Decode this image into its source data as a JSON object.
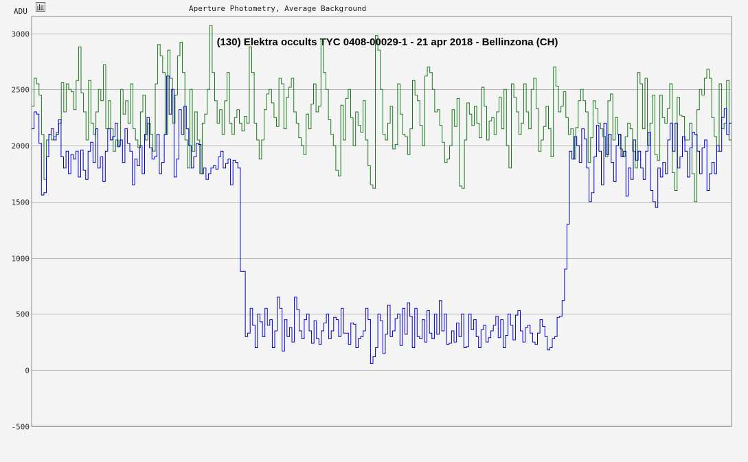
{
  "header": {
    "y_unit": "ADU",
    "caption": "Aperture Photometry, Average Background",
    "icon": "chart-settings-icon"
  },
  "chart_data": {
    "type": "line",
    "title": "(130) Elektra occults TYC 0408-00029-1 - 21 apr 2018 - Bellinzona (CH)",
    "ylabel": "ADU",
    "xlabel": "",
    "ylim": [
      -500,
      3150
    ],
    "yticks": [
      3000,
      2500,
      2000,
      1500,
      1000,
      500,
      0,
      -500
    ],
    "ytick_labels": [
      "3000",
      "2500",
      "2000",
      "1500",
      "1000",
      "500",
      "0",
      "-500"
    ],
    "grid": true,
    "legend": "none",
    "x_start": 0,
    "x_step": 1,
    "colors": {
      "series_1": "#0000cc",
      "series_2": "#1a7a1a",
      "grid": "#b4b4b4",
      "axis": "#8a8a8a",
      "plot_bg": "#f4f4f4"
    },
    "series": [
      {
        "values": [
          2150,
          2300,
          2280,
          2020,
          1560,
          1580,
          1900,
          2100,
          2150,
          2050,
          2100,
          2230,
          1900,
          1800,
          1950,
          1750,
          1920,
          1880,
          1950,
          1720,
          1960,
          1780,
          1700,
          1950,
          2030,
          1850,
          2150,
          1800,
          1900,
          1680,
          1950,
          2150,
          2050,
          2080,
          2200,
          1990,
          2050,
          1850,
          2150,
          2020,
          1950,
          1650,
          1880,
          1820,
          2000,
          1750,
          2100,
          2250,
          1980,
          1880,
          1900,
          2100,
          1750,
          1850,
          2100,
          2620,
          2280,
          2500,
          1720,
          1880,
          2320,
          2100,
          2350,
          2150,
          2000,
          1800,
          1900,
          2020,
          2010,
          1750,
          1800,
          1700,
          1750,
          1800,
          1820,
          1790,
          1900,
          1950,
          1800,
          1840,
          1880,
          1650,
          1870,
          1850,
          1800,
          880,
          880,
          300,
          330,
          550,
          400,
          200,
          500,
          430,
          300,
          550,
          400,
          450,
          200,
          350,
          650,
          550,
          170,
          450,
          300,
          380,
          250,
          650,
          540,
          350,
          280,
          450,
          500,
          350,
          240,
          440,
          280,
          230,
          350,
          420,
          500,
          280,
          350,
          470,
          450,
          300,
          550,
          330,
          330,
          230,
          420,
          410,
          200,
          280,
          300,
          350,
          550,
          450,
          60,
          120,
          200,
          500,
          440,
          150,
          320,
          580,
          300,
          350,
          460,
          500,
          220,
          550,
          320,
          600,
          480,
          200,
          550,
          300,
          280,
          450,
          250,
          530,
          330,
          280,
          500,
          320,
          620,
          350,
          500,
          230,
          240,
          350,
          250,
          420,
          300,
          500,
          200,
          210,
          500,
          360,
          450,
          300,
          200,
          360,
          400,
          250,
          290,
          350,
          400,
          480,
          290,
          450,
          200,
          310,
          500,
          400,
          270,
          490,
          530,
          350,
          250,
          380,
          400,
          330,
          250,
          230,
          330,
          450,
          390,
          300,
          180,
          200,
          280,
          300,
          470,
          480,
          620,
          900,
          1300,
          1950,
          1880,
          2080,
          2000,
          1850,
          2150,
          2060,
          1800,
          1500,
          1580,
          1900,
          2180,
          1950,
          1650,
          2200,
          1920,
          2100,
          1850,
          1680,
          2000,
          2100,
          1900,
          1950,
          1550,
          1800,
          1700,
          2050,
          1870,
          1950,
          1800,
          1700,
          1950,
          2120,
          1600,
          1500,
          1450,
          1800,
          1720,
          1850,
          1750,
          2050,
          2200,
          1950,
          2200,
          1800,
          1900,
          2080,
          1950,
          1720,
          1980,
          2120,
          2100,
          1950,
          1750,
          1980,
          2050,
          1600,
          1750,
          1850,
          1750,
          2000,
          1950,
          2250,
          2330,
          2100,
          2200
        ]
      },
      {
        "values": [
          2350,
          2600,
          2550,
          2450,
          2100,
          1700,
          2050,
          2100,
          2050,
          2080,
          2120,
          2200,
          2560,
          2300,
          2550,
          2500,
          2480,
          2320,
          2580,
          2880,
          2470,
          2300,
          2050,
          2580,
          2200,
          2100,
          2300,
          2500,
          2400,
          2720,
          2150,
          2400,
          2150,
          1950,
          2050,
          2000,
          2500,
          2280,
          2400,
          2200,
          2550,
          2150,
          2050,
          1980,
          2300,
          2450,
          2050,
          2200,
          2100,
          1950,
          2550,
          2900,
          2800,
          2650,
          2100,
          2850,
          2600,
          2200,
          2450,
          2800,
          2920,
          2650,
          2050,
          1800,
          2500,
          1950,
          2300,
          2050,
          1750,
          2200,
          2280,
          2500,
          3070,
          2650,
          2400,
          2200,
          2320,
          2100,
          2400,
          2650,
          2200,
          2100,
          2250,
          2320,
          2200,
          2130,
          2260,
          2200,
          2880,
          2650,
          2200,
          2050,
          1880,
          2050,
          2320,
          2460,
          2500,
          2380,
          2250,
          2170,
          2600,
          2550,
          2150,
          2430,
          2520,
          2600,
          2300,
          2200,
          2070,
          2000,
          1920,
          2280,
          2150,
          2370,
          2550,
          2300,
          2350,
          2950,
          2650,
          2500,
          2230,
          2100,
          2000,
          1780,
          1730,
          2360,
          2050,
          2420,
          2500,
          2250,
          2000,
          2300,
          2180,
          2120,
          2400,
          2050,
          1820,
          1650,
          1620,
          2980,
          2850,
          2500,
          2100,
          2050,
          2200,
          2350,
          1970,
          2010,
          2550,
          2280,
          2100,
          2080,
          1920,
          2150,
          2580,
          2450,
          2400,
          2180,
          2000,
          2620,
          2700,
          2650,
          2500,
          2300,
          2320,
          2180,
          2030,
          1850,
          1880,
          2000,
          2320,
          2170,
          2420,
          1640,
          1620,
          2050,
          2380,
          2280,
          2180,
          2350,
          2200,
          2070,
          2520,
          2350,
          2050,
          2220,
          2250,
          2100,
          2300,
          2430,
          2150,
          2500,
          2000,
          1800,
          2550,
          2430,
          2300,
          2100,
          2200,
          2550,
          2300,
          2150,
          2500,
          2600,
          2330,
          1950,
          2050,
          2170,
          2350,
          2150,
          1900,
          2700,
          2530,
          2300,
          2350,
          2480,
          2250,
          2100,
          2150,
          1880,
          2160,
          2400,
          2500,
          2400,
          2300,
          1850,
          2070,
          2400,
          2330,
          2200,
          2150,
          2080,
          1900,
          2400,
          2460,
          2050,
          2250,
          2100,
          1970,
          1900,
          2080,
          2200,
          2150,
          1950,
          1800,
          2650,
          2550,
          2150,
          2600,
          2000,
          2200,
          2450,
          1920,
          1870,
          2450,
          2250,
          2200,
          2330,
          2550,
          1760,
          1600,
          2430,
          2270,
          2260,
          2050,
          2050,
          2200,
          1750,
          1500,
          2320,
          2500,
          2450,
          2600,
          2680,
          2600,
          2250,
          2080,
          1950,
          2550,
          2150,
          2200,
          2580,
          2050
        ]
      }
    ]
  }
}
